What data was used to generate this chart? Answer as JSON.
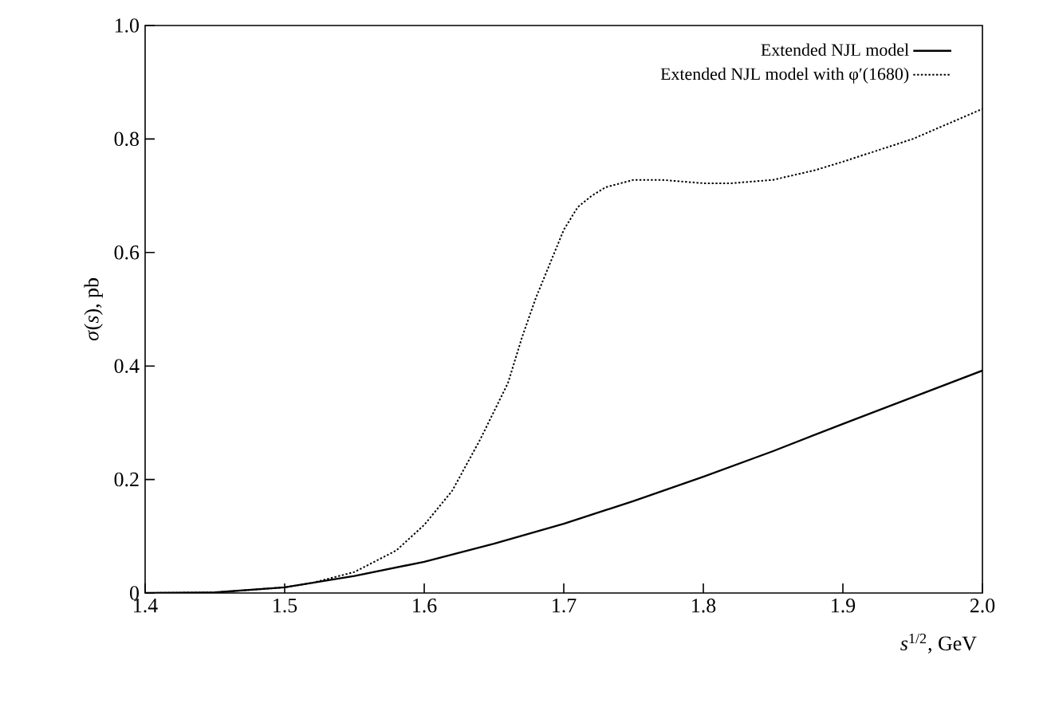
{
  "chart_data": {
    "type": "line",
    "xlabel": "*s*$^{1/2}$, GeV",
    "ylabel": "*σ*(*s*), pb",
    "xlim": [
      1.4,
      2.0
    ],
    "ylim": [
      0,
      1.0
    ],
    "xticks": [
      1.4,
      1.5,
      1.6,
      1.7,
      1.8,
      1.9,
      {
        "value": 2.0,
        "label": "2.0"
      }
    ],
    "yticks": [
      0,
      0.2,
      0.4,
      0.6,
      0.8,
      {
        "value": 1.0,
        "label": "1.0"
      }
    ],
    "grid": false,
    "legend": "top right",
    "marker": "none",
    "series": [
      {
        "name": "Extended NJL model",
        "color": "#000000",
        "line_style": "solid",
        "x": [
          1.4,
          1.45,
          1.5,
          1.55,
          1.6,
          1.65,
          1.7,
          1.75,
          1.8,
          1.85,
          1.9,
          1.95,
          2.0
        ],
        "values": [
          0,
          0.001,
          0.01,
          0.03,
          0.055,
          0.087,
          0.122,
          0.162,
          0.205,
          0.25,
          0.298,
          0.345,
          0.392
        ]
      },
      {
        "name": "Extended NJL model with φ′(1680)",
        "color": "#000000",
        "line_style": "dotted",
        "x": [
          1.4,
          1.45,
          1.5,
          1.52,
          1.55,
          1.58,
          1.6,
          1.62,
          1.64,
          1.65,
          1.66,
          1.67,
          1.68,
          1.69,
          1.7,
          1.71,
          1.72,
          1.73,
          1.75,
          1.77,
          1.8,
          1.82,
          1.85,
          1.88,
          1.9,
          1.95,
          2.0
        ],
        "values": [
          0,
          0.001,
          0.01,
          0.018,
          0.037,
          0.075,
          0.12,
          0.18,
          0.27,
          0.32,
          0.37,
          0.45,
          0.52,
          0.58,
          0.64,
          0.68,
          0.7,
          0.715,
          0.728,
          0.728,
          0.722,
          0.722,
          0.728,
          0.745,
          0.76,
          0.8,
          0.853
        ]
      }
    ]
  }
}
